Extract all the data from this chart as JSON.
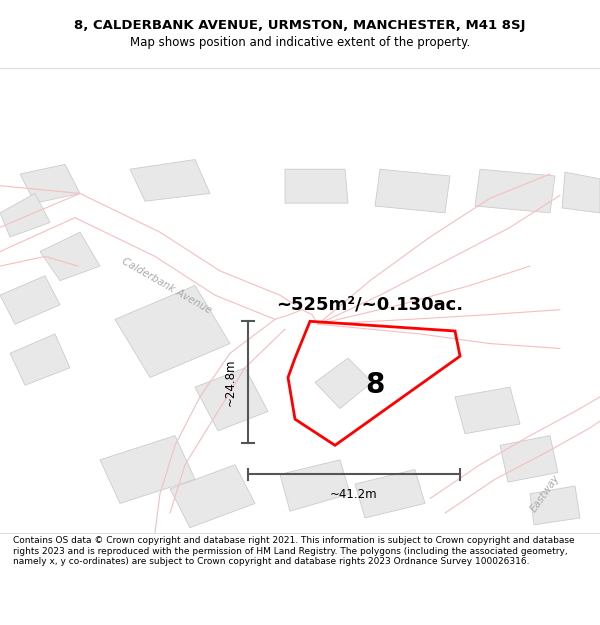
{
  "title_line1": "8, CALDERBANK AVENUE, URMSTON, MANCHESTER, M41 8SJ",
  "title_line2": "Map shows position and indicative extent of the property.",
  "footer_text": "Contains OS data © Crown copyright and database right 2021. This information is subject to Crown copyright and database rights 2023 and is reproduced with the permission of HM Land Registry. The polygons (including the associated geometry, namely x, y co-ordinates) are subject to Crown copyright and database rights 2023 Ordnance Survey 100026316.",
  "area_label": "~525m²/~0.130ac.",
  "width_label": "~41.2m",
  "height_label": "~24.8m",
  "property_number": "8",
  "map_bg": "#ffffff",
  "road_line_color": "#f5bfbf",
  "building_fc": "#e8e8e8",
  "building_ec": "#cccccc",
  "dim_line_color": "#555555",
  "calderbank_text_color": "#aaaaaa",
  "eastway_text_color": "#aaaaaa"
}
